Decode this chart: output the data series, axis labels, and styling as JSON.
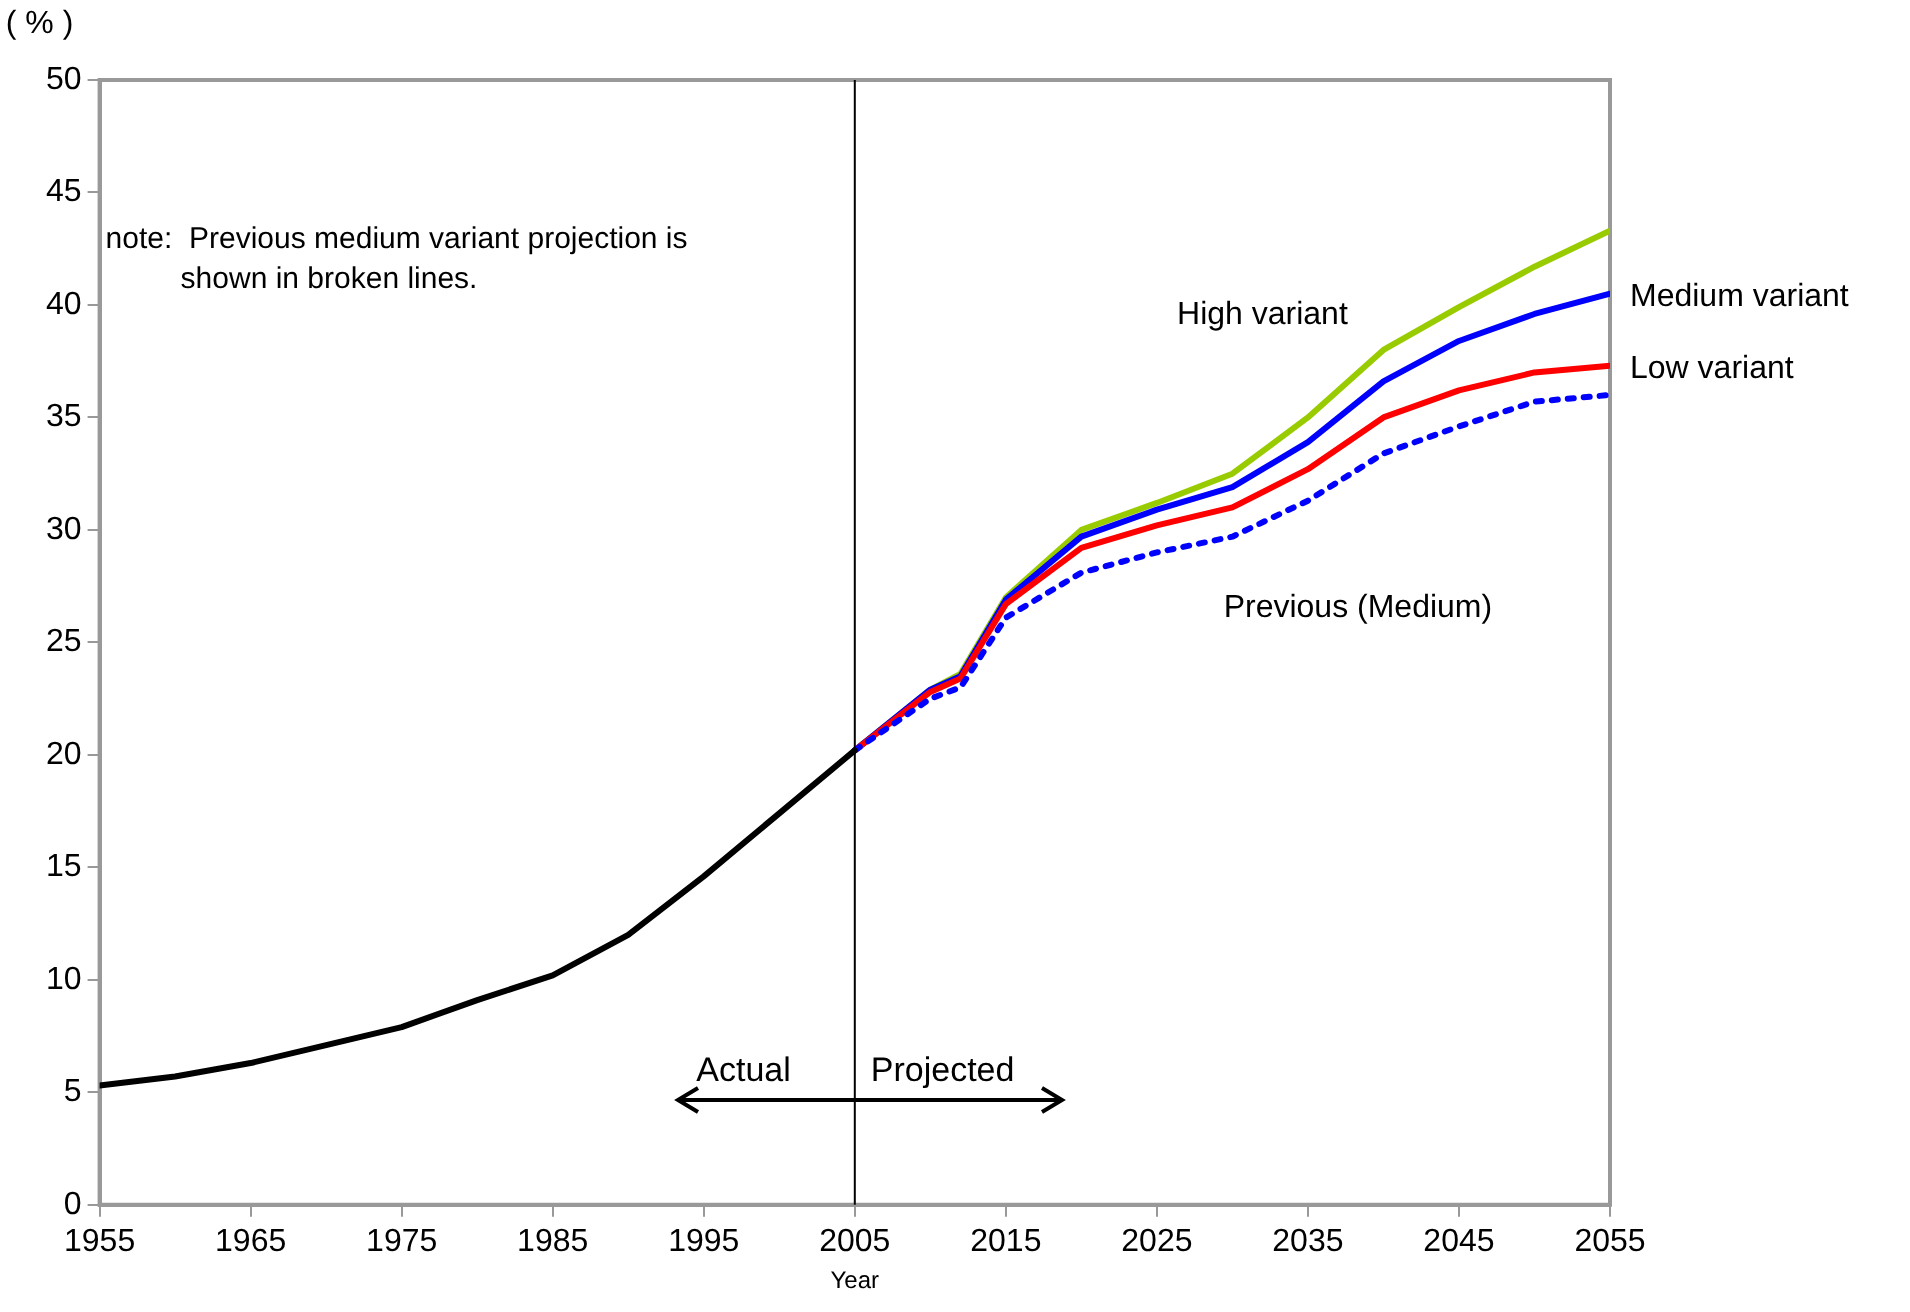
{
  "chart_data": {
    "type": "line",
    "xlabel": "Year",
    "ylabel": "( % )",
    "xlim": [
      1955,
      2055
    ],
    "xticks": [
      1955,
      1965,
      1975,
      1985,
      1995,
      2005,
      2015,
      2025,
      2035,
      2045,
      2055
    ],
    "ylim": [
      0,
      50
    ],
    "yticks": [
      0,
      5,
      10,
      15,
      20,
      25,
      30,
      35,
      40,
      45,
      50
    ],
    "grid": false,
    "legend": false,
    "marker": "none",
    "ref_lines": [
      {
        "axis": "x",
        "value": 2005,
        "color": "#000000"
      }
    ],
    "annotations": [
      "note:  Previous medium variant projection is\n         shown in broken lines.",
      "Actual",
      "Projected"
    ],
    "series": [
      {
        "color": "#000000",
        "line_style": "solid",
        "x": [
          1955,
          1960,
          1965,
          1970,
          1975,
          1980,
          1985,
          1990,
          1995,
          2000,
          2005
        ],
        "values": [
          5.3,
          5.7,
          6.3,
          7.1,
          7.9,
          9.1,
          10.2,
          12.0,
          14.6,
          17.4,
          20.2
        ]
      },
      {
        "name": "Previous (Medium)",
        "color": "#0000ff",
        "line_style": "dotted",
        "x": [
          2005,
          2010,
          2012,
          2015,
          2020,
          2025,
          2030,
          2035,
          2040,
          2045,
          2050,
          2055
        ],
        "values": [
          20.2,
          22.5,
          23.0,
          26.1,
          28.1,
          29.0,
          29.7,
          31.3,
          33.4,
          34.6,
          35.7,
          36.0
        ]
      },
      {
        "name": "Low variant",
        "color": "#ff0000",
        "line_style": "solid",
        "x": [
          2005,
          2010,
          2012,
          2015,
          2020,
          2025,
          2030,
          2035,
          2040,
          2045,
          2050,
          2055
        ],
        "values": [
          20.2,
          22.8,
          23.4,
          26.7,
          29.2,
          30.2,
          31.0,
          32.7,
          35.0,
          36.2,
          37.0,
          37.3
        ]
      },
      {
        "name": "Medium variant",
        "color": "#0000ff",
        "line_style": "solid",
        "x": [
          2005,
          2010,
          2012,
          2015,
          2020,
          2025,
          2030,
          2035,
          2040,
          2045,
          2050,
          2055
        ],
        "values": [
          20.2,
          22.9,
          23.5,
          26.9,
          29.7,
          30.9,
          31.9,
          33.9,
          36.6,
          38.4,
          39.6,
          40.5
        ]
      },
      {
        "name": "High variant",
        "color": "#99cc00",
        "line_style": "solid",
        "x": [
          2005,
          2010,
          2012,
          2015,
          2020,
          2025,
          2030,
          2035,
          2040,
          2045,
          2050,
          2055
        ],
        "values": [
          20.2,
          22.9,
          23.6,
          27.0,
          30.0,
          31.2,
          32.5,
          35.0,
          38.0,
          39.9,
          41.7,
          43.3
        ]
      }
    ]
  }
}
